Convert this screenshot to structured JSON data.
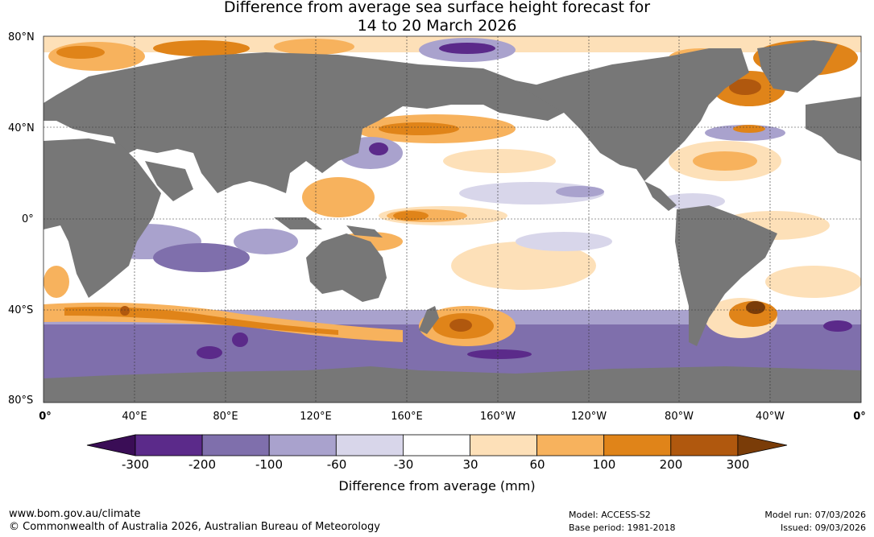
{
  "title_line1": "Difference from average sea surface height forecast for",
  "title_line2": "14 to 20 March 2026",
  "latitude_labels": [
    "80°N",
    "40°N",
    "0°",
    "40°S",
    "80°S"
  ],
  "longitude_labels": [
    "0°",
    "40°E",
    "80°E",
    "120°E",
    "160°E",
    "160°W",
    "120°W",
    "80°W",
    "40°W",
    "0°"
  ],
  "colorbar": {
    "title": "Difference from average (mm)",
    "ticks": [
      "-300",
      "-200",
      "-100",
      "-60",
      "-30",
      "30",
      "60",
      "100",
      "200",
      "300"
    ],
    "colors": [
      "#3a0d56",
      "#5b2a8a",
      "#7f6fac",
      "#a9a2cd",
      "#d8d6ea",
      "#ffffff",
      "#fde0b8",
      "#f7b25d",
      "#e08419",
      "#b0580e",
      "#7a3c08"
    ]
  },
  "colors": {
    "land": "#777777",
    "ocean_neutral": "#ffffff",
    "grid": "#333333"
  },
  "footer": {
    "website": "www.bom.gov.au/climate",
    "copyright": "© Commonwealth of Australia 2026, Australian Bureau of Meteorology",
    "model": "Model: ACCESS-S2",
    "base_period": "Base period: 1981-2018",
    "model_run": "Model run: 07/03/2026",
    "issued": "Issued: 09/03/2026"
  }
}
